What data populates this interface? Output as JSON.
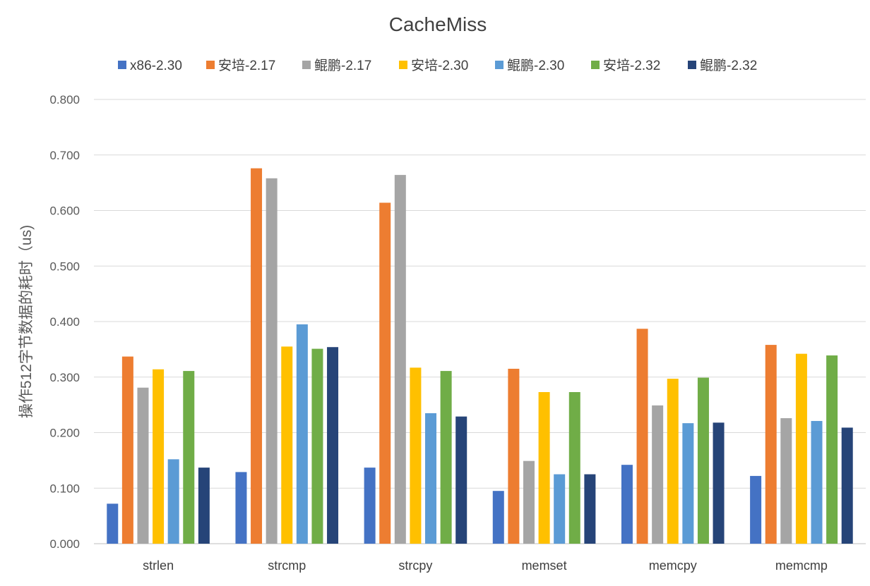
{
  "chart_data": {
    "type": "bar",
    "title": "CacheMiss",
    "xlabel": "",
    "ylabel": "操作512字节数据的耗时（us)",
    "ylim": [
      0,
      0.8
    ],
    "y_tick_step": 0.1,
    "y_tick_labels": [
      "0.000",
      "0.100",
      "0.200",
      "0.300",
      "0.400",
      "0.500",
      "0.600",
      "0.700",
      "0.800"
    ],
    "grid": true,
    "legend_position": "top",
    "categories": [
      "strlen",
      "strcmp",
      "strcpy",
      "memset",
      "memcpy",
      "memcmp"
    ],
    "series": [
      {
        "name": "x86-2.30",
        "color": "#4472C4",
        "values": [
          0.072,
          0.129,
          0.137,
          0.095,
          0.142,
          0.122
        ]
      },
      {
        "name": "安培-2.17",
        "color": "#ED7D31",
        "values": [
          0.337,
          0.676,
          0.614,
          0.315,
          0.387,
          0.358
        ]
      },
      {
        "name": "鲲鹏-2.17",
        "color": "#A5A5A5",
        "values": [
          0.281,
          0.658,
          0.664,
          0.149,
          0.249,
          0.226
        ]
      },
      {
        "name": "安培-2.30",
        "color": "#FFC000",
        "values": [
          0.314,
          0.355,
          0.317,
          0.273,
          0.297,
          0.342
        ]
      },
      {
        "name": "鲲鹏-2.30",
        "color": "#5B9BD5",
        "values": [
          0.152,
          0.395,
          0.235,
          0.125,
          0.217,
          0.221
        ]
      },
      {
        "name": "安培-2.32",
        "color": "#70AD47",
        "values": [
          0.311,
          0.351,
          0.311,
          0.273,
          0.299,
          0.339
        ]
      },
      {
        "name": "鲲鹏-2.32",
        "color": "#264478",
        "values": [
          0.137,
          0.354,
          0.229,
          0.125,
          0.218,
          0.209
        ]
      }
    ]
  }
}
